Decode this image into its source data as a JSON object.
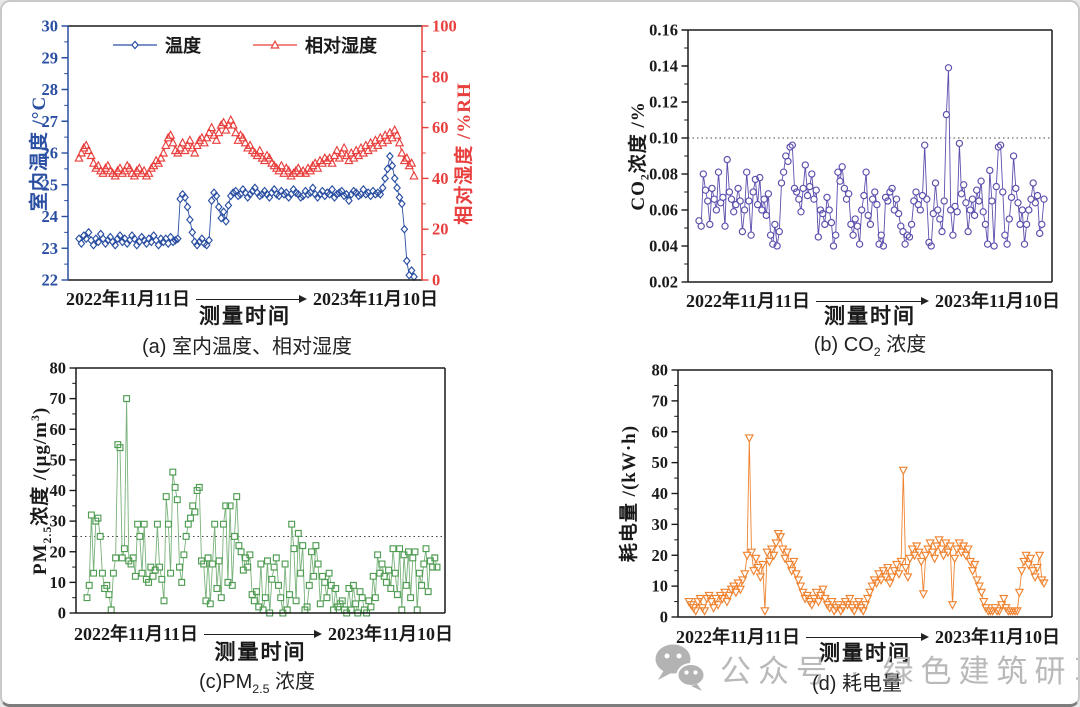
{
  "watermark": {
    "text": "公众号 · 绿色建筑研习社"
  },
  "chart_data": [
    {
      "id": "a",
      "type": "scatter",
      "caption_parts": [
        {
          "t": "(a) 室内温度、相对湿度"
        }
      ],
      "xlabel": "测量时间",
      "x_start_label": "2022年11月11日",
      "x_end_label": "2023年11月10日",
      "legend": [
        {
          "label": "温度",
          "color": "#2a4fa2",
          "marker": "diamond"
        },
        {
          "label": "相对湿度",
          "color": "#e8403e",
          "marker": "triangle-up"
        }
      ],
      "spines": {
        "top": "#1a1a1a",
        "bottom": "#1a1a1a",
        "left": "#2a4fa2",
        "right": "#e8403e"
      },
      "axes": [
        {
          "side": "left",
          "min": 22,
          "max": 30,
          "color": "#2a4fa2",
          "title_parts": [
            {
              "t": "室内温度 /°C"
            }
          ],
          "tick_values": [
            22,
            23,
            24,
            25,
            26,
            27,
            28,
            29,
            30
          ],
          "tick_labels": [
            "22",
            "23",
            "24",
            "25",
            "26",
            "27",
            "28",
            "29",
            "30"
          ]
        },
        {
          "side": "right",
          "min": 0,
          "max": 100,
          "color": "#e8403e",
          "title_parts": [
            {
              "t": "相对湿度 /%RH"
            }
          ],
          "tick_values": [
            0,
            20,
            40,
            60,
            80,
            100
          ],
          "tick_labels": [
            "0",
            "20",
            "40",
            "60",
            "80",
            "100"
          ]
        }
      ],
      "series": [
        {
          "name": "温度",
          "color": "#2a4fa2",
          "marker": "diamond",
          "axis": 0,
          "values": [
            23.3,
            23.15,
            23.4,
            23.3,
            23.5,
            23.25,
            23.1,
            23.3,
            23.2,
            23.45,
            23.3,
            23.15,
            23.25,
            23.35,
            23.2,
            23.1,
            23.3,
            23.4,
            23.2,
            23.3,
            23.15,
            23.25,
            23.4,
            23.3,
            23.1,
            23.2,
            23.35,
            23.25,
            23.15,
            23.3,
            23.2,
            23.4,
            23.25,
            23.1,
            23.3,
            23.2,
            23.3,
            23.15,
            23.35,
            23.2,
            23.25,
            23.3,
            24.55,
            24.7,
            24.6,
            24.3,
            23.9,
            23.5,
            23.2,
            23.1,
            23.2,
            23.3,
            23.15,
            23.1,
            23.25,
            24.5,
            24.75,
            24.65,
            24.3,
            23.95,
            24.15,
            23.85,
            24.35,
            24.65,
            24.75,
            24.8,
            24.65,
            24.7,
            24.85,
            24.75,
            24.6,
            24.7,
            24.8,
            24.9,
            24.75,
            24.65,
            24.7,
            24.8,
            24.7,
            24.6,
            24.75,
            24.85,
            24.7,
            24.65,
            24.8,
            24.7,
            24.75,
            24.6,
            24.7,
            24.85,
            24.75,
            24.7,
            24.6,
            24.65,
            24.8,
            24.7,
            24.75,
            24.9,
            24.7,
            24.6,
            24.7,
            24.8,
            24.65,
            24.75,
            24.7,
            24.85,
            24.6,
            24.7,
            24.75,
            24.8,
            24.65,
            24.7,
            24.5,
            24.7,
            24.8,
            24.75,
            24.65,
            24.7,
            24.85,
            24.7,
            24.75,
            24.65,
            24.8,
            24.7,
            24.75,
            24.7,
            24.9,
            25.2,
            25.5,
            25.9,
            25.6,
            25.2,
            24.9,
            24.6,
            24.4,
            23.6,
            22.6,
            22.15,
            22.3,
            22.1
          ]
        },
        {
          "name": "相对湿度",
          "color": "#e8403e",
          "marker": "triangle-up",
          "axis": 1,
          "values": [
            48,
            50,
            52,
            53,
            51,
            49,
            46,
            44,
            45,
            43,
            42,
            44,
            45,
            43,
            42,
            41,
            43,
            44,
            42,
            43,
            45,
            44,
            42,
            41,
            43,
            44,
            42,
            43,
            41,
            42,
            44,
            45,
            47,
            46,
            48,
            50,
            53,
            56,
            57,
            54,
            51,
            50,
            52,
            54,
            51,
            53,
            55,
            52,
            50,
            53,
            55,
            56,
            54,
            56,
            58,
            60,
            57,
            55,
            58,
            61,
            62,
            59,
            61,
            63,
            61,
            58,
            55,
            57,
            56,
            54,
            52,
            53,
            51,
            50,
            49,
            51,
            48,
            47,
            49,
            48,
            46,
            45,
            44,
            43,
            45,
            42,
            44,
            43,
            41,
            42,
            43,
            44,
            42,
            43,
            42,
            44,
            43,
            45,
            46,
            44,
            47,
            46,
            48,
            47,
            48,
            46,
            49,
            51,
            48,
            50,
            52,
            49,
            47,
            50,
            48,
            51,
            49,
            52,
            50,
            53,
            51,
            54,
            52,
            55,
            53,
            56,
            54,
            57,
            55,
            58,
            56,
            59,
            57,
            54,
            50,
            47,
            48,
            45,
            46,
            41
          ]
        }
      ]
    },
    {
      "id": "b",
      "type": "scatter",
      "caption_parts": [
        {
          "t": "(b) CO"
        },
        {
          "t": "2",
          "style": "sub"
        },
        {
          "t": " 浓度"
        }
      ],
      "xlabel": "测量时间",
      "x_start_label": "2022年11月11日",
      "x_end_label": "2023年11月10日",
      "refline": 0.1,
      "spines": {
        "top": "#1a1a1a",
        "bottom": "#1a1a1a",
        "left": "#1a1a1a",
        "right": "#1a1a1a"
      },
      "axes": [
        {
          "side": "left",
          "min": 0.02,
          "max": 0.16,
          "color": "#1a1a1a",
          "title_parts": [
            {
              "t": "CO"
            },
            {
              "t": "2",
              "style": "sub"
            },
            {
              "t": "浓度 /%"
            }
          ],
          "tick_values": [
            0.02,
            0.04,
            0.06,
            0.08,
            0.1,
            0.12,
            0.14,
            0.16
          ],
          "tick_labels": [
            "0.02",
            "0.04",
            "0.06",
            "0.08",
            "0.10",
            "0.12",
            "0.14",
            "0.16"
          ]
        }
      ],
      "series": [
        {
          "name": "CO2浓度",
          "color": "#5b4fad",
          "marker": "circle",
          "axis": 0,
          "values": [
            0.054,
            0.051,
            0.08,
            0.071,
            0.065,
            0.052,
            0.072,
            0.066,
            0.06,
            0.081,
            0.064,
            0.067,
            0.051,
            0.088,
            0.07,
            0.066,
            0.059,
            0.063,
            0.072,
            0.065,
            0.048,
            0.06,
            0.081,
            0.065,
            0.046,
            0.07,
            0.077,
            0.063,
            0.078,
            0.06,
            0.066,
            0.057,
            0.069,
            0.046,
            0.041,
            0.052,
            0.04,
            0.048,
            0.075,
            0.081,
            0.09,
            0.087,
            0.095,
            0.096,
            0.072,
            0.07,
            0.066,
            0.059,
            0.072,
            0.085,
            0.068,
            0.073,
            0.08,
            0.066,
            0.071,
            0.045,
            0.06,
            0.058,
            0.052,
            0.067,
            0.06,
            0.053,
            0.04,
            0.046,
            0.081,
            0.076,
            0.084,
            0.072,
            0.066,
            0.069,
            0.052,
            0.046,
            0.055,
            0.051,
            0.041,
            0.06,
            0.068,
            0.081,
            0.057,
            0.052,
            0.066,
            0.07,
            0.063,
            0.041,
            0.046,
            0.04,
            0.067,
            0.065,
            0.07,
            0.072,
            0.06,
            0.066,
            0.058,
            0.051,
            0.048,
            0.041,
            0.046,
            0.045,
            0.052,
            0.065,
            0.07,
            0.063,
            0.06,
            0.068,
            0.096,
            0.066,
            0.042,
            0.04,
            0.058,
            0.075,
            0.06,
            0.055,
            0.048,
            0.065,
            0.113,
            0.139,
            0.06,
            0.046,
            0.062,
            0.059,
            0.097,
            0.069,
            0.074,
            0.064,
            0.048,
            0.06,
            0.066,
            0.057,
            0.071,
            0.065,
            0.076,
            0.059,
            0.052,
            0.041,
            0.082,
            0.065,
            0.04,
            0.073,
            0.095,
            0.096,
            0.07,
            0.046,
            0.041,
            0.055,
            0.067,
            0.09,
            0.072,
            0.064,
            0.052,
            0.06,
            0.041,
            0.052,
            0.06,
            0.066,
            0.075,
            0.064,
            0.068,
            0.047,
            0.052,
            0.066
          ]
        }
      ]
    },
    {
      "id": "c",
      "type": "scatter",
      "caption_parts": [
        {
          "t": "(c)PM"
        },
        {
          "t": "2.5",
          "style": "sub"
        },
        {
          "t": " 浓度"
        }
      ],
      "xlabel": "测量时间",
      "x_start_label": "2022年11月11日",
      "x_end_label": "2023年11月10日",
      "refline": 25,
      "spines": {
        "top": "#1a1a1a",
        "bottom": "#1a1a1a",
        "left": "#1a1a1a",
        "right": "#1a1a1a"
      },
      "axes": [
        {
          "side": "left",
          "min": 0,
          "max": 80,
          "color": "#1a1a1a",
          "title_parts": [
            {
              "t": "PM"
            },
            {
              "t": "2.5",
              "style": "sub"
            },
            {
              "t": "浓度 /(μg/m"
            },
            {
              "t": "3",
              "style": "sup"
            },
            {
              "t": ")"
            }
          ],
          "tick_values": [
            0,
            10,
            20,
            30,
            40,
            50,
            60,
            70,
            80
          ],
          "tick_labels": [
            "0",
            "10",
            "20",
            "30",
            "40",
            "50",
            "60",
            "70",
            "80"
          ]
        }
      ],
      "series": [
        {
          "name": "PM2.5浓度",
          "color": "#4f9c52",
          "line_color": "#79b27b",
          "marker": "square",
          "axis": 0,
          "values": [
            5,
            9,
            32,
            13,
            30,
            31,
            25,
            13,
            8,
            9,
            6,
            1,
            13,
            18,
            55,
            54,
            18,
            21,
            70,
            17,
            16,
            18,
            12,
            29,
            25,
            13,
            29,
            11,
            10,
            15,
            12,
            14,
            29,
            15,
            11,
            4,
            38,
            29,
            13,
            46,
            41,
            37,
            15,
            10,
            19,
            25,
            29,
            31,
            35,
            33,
            40,
            41,
            17,
            16,
            4,
            18,
            3,
            16,
            29,
            8,
            17,
            5,
            29,
            35,
            10,
            35,
            9,
            25,
            38,
            22,
            20,
            14,
            18,
            15,
            19,
            6,
            4,
            7,
            2,
            16,
            1,
            5,
            17,
            0,
            11,
            15,
            18,
            9,
            5,
            0,
            16,
            1,
            6,
            29,
            21,
            4,
            26,
            13,
            22,
            1,
            2,
            9,
            20,
            12,
            22,
            16,
            3,
            12,
            10,
            5,
            13,
            9,
            1,
            8,
            2,
            3,
            4,
            1,
            0,
            8,
            1,
            9,
            3,
            0,
            7,
            5,
            1,
            0,
            4,
            2,
            12,
            5,
            19,
            13,
            16,
            12,
            10,
            14,
            8,
            21,
            13,
            6,
            21,
            1,
            19,
            9,
            20,
            5,
            18,
            20,
            1,
            13,
            9,
            16,
            21,
            7,
            17,
            15,
            18,
            15
          ]
        }
      ]
    },
    {
      "id": "d",
      "type": "scatter",
      "caption_parts": [
        {
          "t": "(d) 耗电量"
        }
      ],
      "xlabel": "测量时间",
      "x_start_label": "2022年11月11日",
      "x_end_label": "2023年11月10日",
      "spines": {
        "top": "#1a1a1a",
        "bottom": "#1a1a1a",
        "left": "#1a1a1a",
        "right": "#1a1a1a"
      },
      "axes": [
        {
          "side": "left",
          "min": 0,
          "max": 80,
          "color": "#1a1a1a",
          "title_parts": [
            {
              "t": "耗电量 /(kW·h)"
            }
          ],
          "tick_values": [
            0,
            10,
            20,
            30,
            40,
            50,
            60,
            70,
            80
          ],
          "tick_labels": [
            "0",
            "10",
            "20",
            "30",
            "40",
            "50",
            "60",
            "70",
            "80"
          ]
        }
      ],
      "series": [
        {
          "name": "耗电量",
          "color": "#ef8432",
          "marker": "triangle-down",
          "axis": 0,
          "values": [
            5,
            4,
            3,
            2,
            5,
            6,
            3,
            2,
            6,
            7,
            5,
            3,
            6,
            4,
            7,
            6,
            8,
            5,
            7,
            9,
            10,
            8,
            11,
            9,
            12,
            14,
            20,
            58,
            21,
            15,
            19,
            16,
            13,
            17,
            2,
            21,
            18,
            22,
            20,
            24,
            27,
            26,
            22,
            19,
            21,
            17,
            15,
            18,
            14,
            12,
            10,
            8,
            6,
            7,
            5,
            4,
            6,
            8,
            5,
            7,
            9,
            6,
            4,
            3,
            5,
            2,
            3,
            4,
            2,
            3,
            5,
            4,
            6,
            3,
            2,
            4,
            5,
            3,
            2,
            4,
            6,
            8,
            10,
            12,
            11,
            14,
            12,
            15,
            13,
            16,
            11,
            13,
            15,
            17,
            14,
            18,
            47.5,
            16,
            13,
            19,
            22,
            20,
            23,
            21,
            18,
            7.5,
            20,
            22,
            24,
            21,
            19,
            23,
            25,
            22,
            20,
            24,
            21,
            23,
            4,
            19,
            22,
            24,
            21,
            23,
            20,
            22,
            18,
            15,
            17,
            12,
            10,
            8,
            5,
            3,
            2,
            2,
            2,
            3,
            2,
            2,
            4,
            6,
            3,
            2,
            2,
            2,
            2,
            2,
            8,
            15,
            18,
            20,
            17,
            19,
            15,
            13,
            16,
            20,
            12,
            11
          ]
        }
      ]
    }
  ]
}
